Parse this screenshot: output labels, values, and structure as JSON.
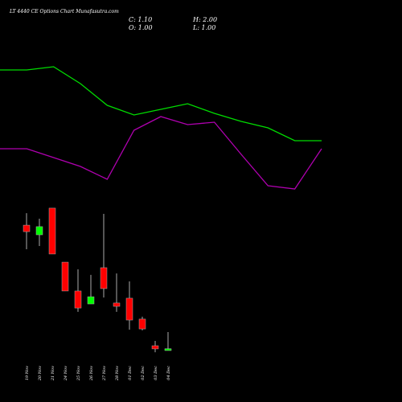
{
  "chart_data": [
    {
      "type": "candlestick",
      "title": "LT 4440 CE Options Chart Munafasutra.com",
      "summary": [
        "C: 1.10",
        "H: 2.00",
        "O: 1.00",
        "L: 1.00"
      ],
      "categories": [
        "19 Nov",
        "20 Nov",
        "21 Nov",
        "24 Nov",
        "25 Nov",
        "26 Nov",
        "27 Nov",
        "28 Nov",
        "01 Dec",
        "02 Dec",
        "03 Dec",
        "04 Dec"
      ],
      "open": [
        7.78,
        7.26,
        8.7,
        5.78,
        4.22,
        3.52,
        5.48,
        3.57,
        3.83,
        2.7,
        1.26,
        1.0
      ],
      "high": [
        8.43,
        8.13,
        8.7,
        5.78,
        5.39,
        5.09,
        8.39,
        5.17,
        4.74,
        2.83,
        1.52,
        2.0
      ],
      "low": [
        6.48,
        6.65,
        6.22,
        4.22,
        3.09,
        3.52,
        3.87,
        3.09,
        2.13,
        2.09,
        0.91,
        1.0
      ],
      "close": [
        7.43,
        7.7,
        6.22,
        4.22,
        3.3,
        3.91,
        4.35,
        3.39,
        2.65,
        2.17,
        1.09,
        1.1
      ],
      "up_color": "#00ff00",
      "down_color": "#ff0000",
      "ylim": [
        0,
        10
      ]
    },
    {
      "type": "line",
      "series": [
        {
          "color": "#00dd00",
          "values": [
            86.5,
            86.5,
            88.5,
            78,
            64.5,
            58.5,
            62,
            65.5,
            59.5,
            54.5,
            50.5,
            42.5,
            42.5
          ]
        },
        {
          "color": "#b000b0",
          "values": [
            37.5,
            37.5,
            32,
            26.5,
            18.5,
            49,
            57.5,
            52.5,
            54,
            34,
            14.5,
            12.5,
            37.5
          ]
        }
      ],
      "ylim": [
        0,
        100
      ]
    }
  ]
}
